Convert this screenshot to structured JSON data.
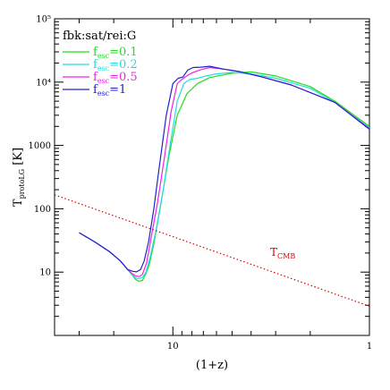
{
  "chart_data": {
    "type": "line",
    "title": "",
    "xlabel": "(1+z)",
    "ylabel": {
      "main": "T",
      "sub": "protoLG",
      "unit": " [K]"
    },
    "x_scale": "log",
    "x_reversed": true,
    "y_scale": "log",
    "xlim": [
      40,
      1
    ],
    "ylim": [
      1,
      100000
    ],
    "x_ticks": [
      {
        "value": 10,
        "label": "10"
      },
      {
        "value": 1,
        "label": "1"
      }
    ],
    "y_ticks": [
      {
        "value": 10,
        "label": "10"
      },
      {
        "value": 100,
        "label": "100"
      },
      {
        "value": 1000,
        "label": "1000"
      },
      {
        "value": 10000,
        "label": "10⁴"
      },
      {
        "value": 100000,
        "label": "10⁵"
      }
    ],
    "grid": false,
    "legend": {
      "title": "fbk:sat/rei:G",
      "placement": "top-left",
      "entries": [
        {
          "name": "f",
          "sub": "esc",
          "suffix": "=0.1",
          "color": "#22dd22"
        },
        {
          "name": "f",
          "sub": "esc",
          "suffix": "=0.2",
          "color": "#22dddd"
        },
        {
          "name": "f",
          "sub": "esc",
          "suffix": "=0.5",
          "color": "#ee22ee"
        },
        {
          "name": "f",
          "sub": "esc",
          "suffix": "=1",
          "color": "#2222cc"
        }
      ]
    },
    "series": [
      {
        "name": "fesc=0.1",
        "color": "#22dd22",
        "x": [
          30,
          25,
          21,
          18.5,
          17,
          16.2,
          15.5,
          15,
          14.3,
          13.8,
          13.2,
          12.5,
          11.5,
          10.5,
          9.5,
          8.5,
          7.5,
          6.5,
          5,
          4,
          3,
          2,
          1.5,
          1
        ],
        "y": [
          42,
          30,
          21,
          15,
          11,
          9.2,
          7.7,
          7.2,
          7.4,
          9,
          13,
          28,
          120,
          650,
          3000,
          6500,
          9500,
          11800,
          13800,
          14500,
          12500,
          8500,
          5000,
          2000
        ]
      },
      {
        "name": "fesc=0.2",
        "color": "#22dddd",
        "x": [
          30,
          25,
          21,
          18.5,
          17,
          16.2,
          15.5,
          15,
          14.3,
          13.7,
          13,
          12.2,
          11.2,
          10.3,
          9.5,
          8.8,
          8.2,
          7.5,
          6.8,
          6,
          5,
          4,
          3,
          2,
          1.5,
          1
        ],
        "y": [
          42,
          30,
          21,
          15,
          11,
          9.3,
          8.1,
          7.9,
          8.2,
          10,
          18,
          45,
          200,
          1100,
          5000,
          9500,
          11000,
          11500,
          12500,
          13500,
          14200,
          13500,
          11500,
          8000,
          4800,
          1900
        ]
      },
      {
        "name": "fesc=0.5",
        "color": "#ee22ee",
        "x": [
          30,
          25,
          21,
          18.5,
          17,
          16.2,
          15.5,
          14.8,
          14.3,
          13.6,
          12.8,
          12,
          11,
          10.2,
          9.5,
          9,
          8.5,
          8,
          7.3,
          6.5,
          5.5,
          4.5,
          3.5,
          2.5,
          1.5,
          1
        ],
        "y": [
          42,
          30,
          21,
          15,
          11,
          9.6,
          8.7,
          8.5,
          9.2,
          14,
          40,
          120,
          700,
          3500,
          9500,
          11000,
          12500,
          14000,
          15500,
          17000,
          16000,
          14500,
          12000,
          9000,
          4800,
          1850
        ]
      },
      {
        "name": "fesc=1",
        "color": "#2222cc",
        "x": [
          30,
          25,
          21,
          18.5,
          17,
          16,
          15.3,
          14.6,
          14,
          13.3,
          12.5,
          11.8,
          10.8,
          10,
          9.4,
          8.9,
          8.4,
          7.9,
          7.2,
          6.5,
          5.5,
          4.5,
          3.5,
          2.5,
          1.5,
          1
        ],
        "y": [
          42,
          30,
          21,
          15,
          11,
          10.3,
          10.1,
          11,
          15,
          30,
          100,
          400,
          3000,
          9500,
          11500,
          12000,
          15500,
          17000,
          17200,
          17800,
          16000,
          14500,
          12000,
          9000,
          4800,
          1800
        ]
      },
      {
        "name": "TCMB",
        "color": "#dd0000",
        "dashed": true,
        "x": [
          40,
          1
        ],
        "y": [
          166,
          2.9
        ]
      }
    ],
    "annotations": [
      {
        "text": "T",
        "sub": "CMB",
        "x": 3.2,
        "y": 18,
        "color": "#dd0000"
      }
    ]
  }
}
